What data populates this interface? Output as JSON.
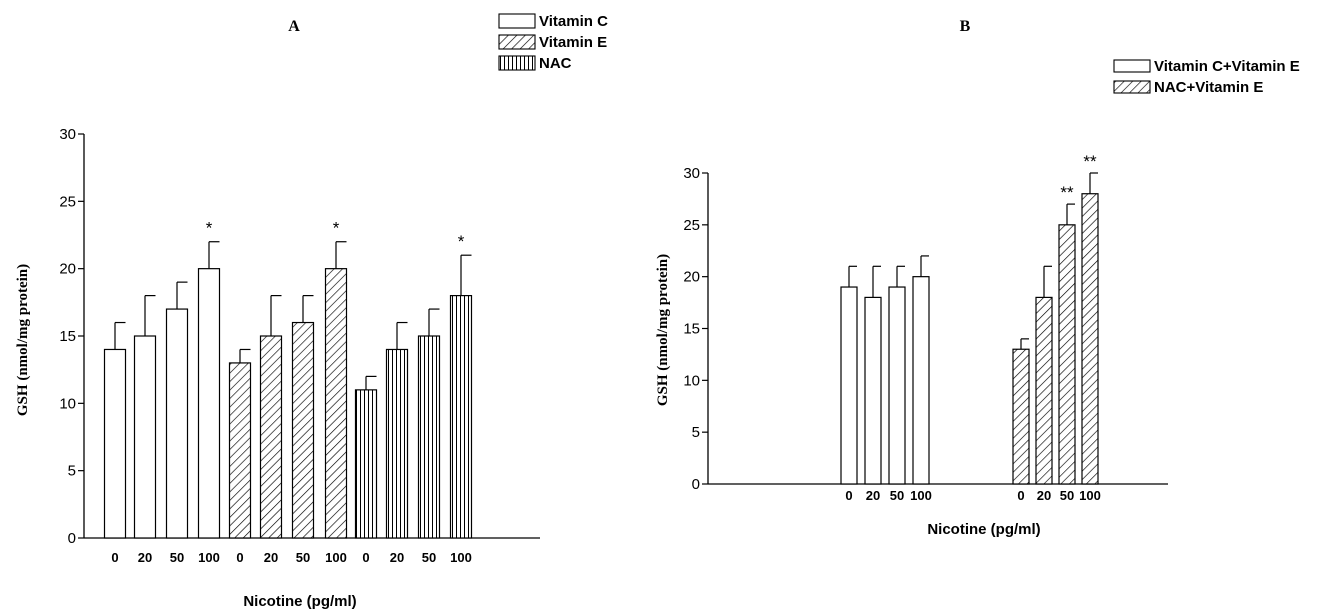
{
  "chart_data": [
    {
      "panel": "A",
      "type": "bar",
      "ylabel": "GSH (nmol/mg protein)",
      "xlabel": "Nicotine (pg/ml)",
      "ylim": [
        0,
        30
      ],
      "yticks": [
        0,
        5,
        10,
        15,
        20,
        25,
        30
      ],
      "grid": false,
      "legend_position": "top-right",
      "categories": [
        "0",
        "20",
        "50",
        "100"
      ],
      "series": [
        {
          "name": "Vitamin C",
          "pattern": "plain",
          "values": [
            14,
            15,
            17,
            20
          ],
          "errors": [
            2,
            3,
            2,
            2
          ],
          "significance": [
            "",
            "",
            "",
            "*"
          ]
        },
        {
          "name": "Vitamin E",
          "pattern": "diagonal",
          "values": [
            13,
            15,
            16,
            20
          ],
          "errors": [
            1,
            3,
            2,
            2
          ],
          "significance": [
            "",
            "",
            "",
            "*"
          ]
        },
        {
          "name": "NAC",
          "pattern": "vertical",
          "values": [
            11,
            14,
            15,
            18
          ],
          "errors": [
            1,
            2,
            2,
            3
          ],
          "significance": [
            "",
            "",
            "",
            "*"
          ]
        }
      ]
    },
    {
      "panel": "B",
      "type": "bar",
      "ylabel": "GSH (nmol/mg protein)",
      "xlabel": "Nicotine (pg/ml)",
      "ylim": [
        0,
        30
      ],
      "yticks": [
        0,
        5,
        10,
        15,
        20,
        25,
        30
      ],
      "grid": false,
      "legend_position": "top-right",
      "categories": [
        "0",
        "20",
        "50",
        "100"
      ],
      "series": [
        {
          "name": "Vitamin C+Vitamin E",
          "pattern": "plain",
          "values": [
            19,
            18,
            19,
            20
          ],
          "errors": [
            2,
            3,
            2,
            2
          ],
          "significance": [
            "",
            "",
            "",
            ""
          ]
        },
        {
          "name": "NAC+Vitamin E",
          "pattern": "diagonal",
          "values": [
            13,
            18,
            25,
            28
          ],
          "errors": [
            1,
            3,
            2,
            2
          ],
          "significance": [
            "",
            "",
            "**",
            "**"
          ]
        }
      ]
    }
  ]
}
